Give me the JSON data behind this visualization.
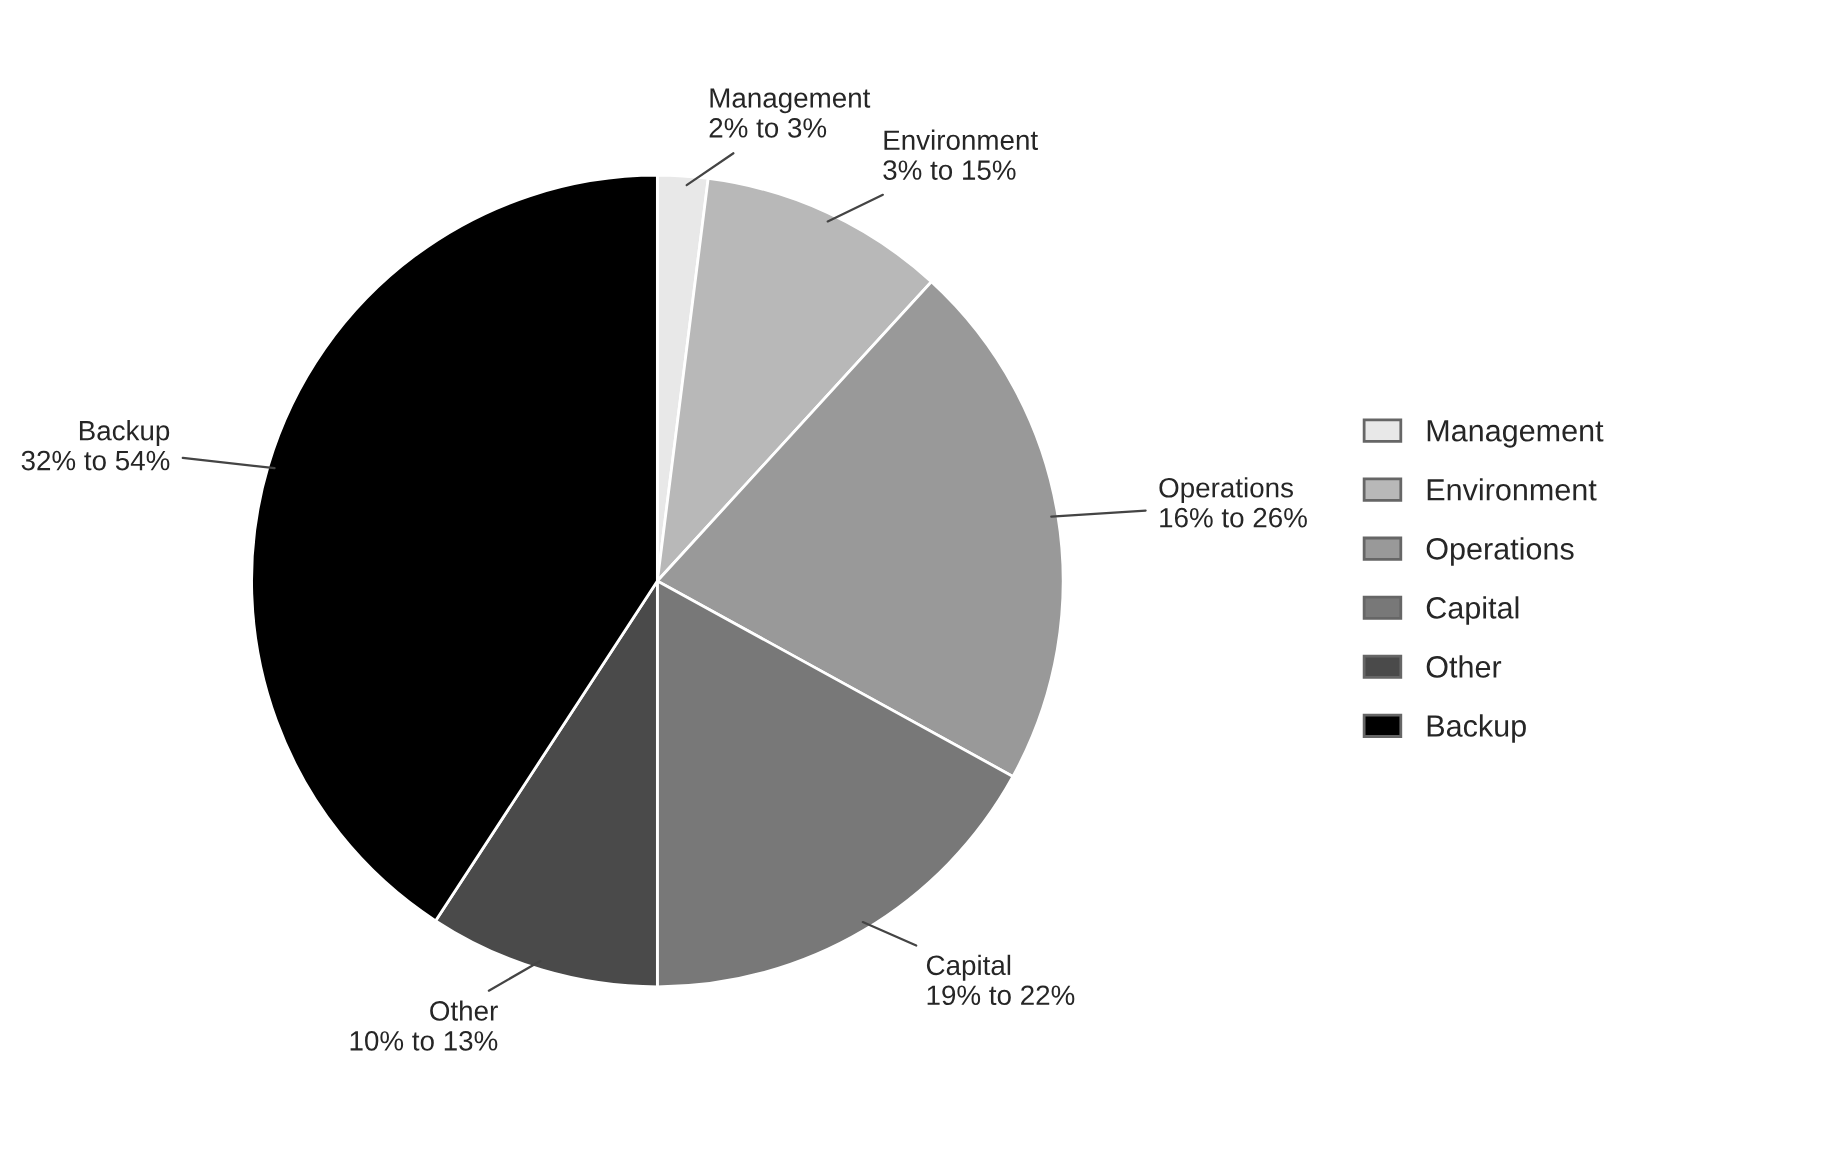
{
  "chart_data": {
    "type": "pie",
    "categories": [
      "Management",
      "Environment",
      "Operations",
      "Capital",
      "Other",
      "Backup"
    ],
    "values": [
      2,
      9.8,
      21.2,
      17,
      9.2,
      40.8
    ],
    "colors": [
      "#e8e8e8",
      "#b8b8b8",
      "#999999",
      "#787878",
      "#4a4a4a",
      "#000000"
    ],
    "annotations": [
      "2% to 3%",
      "3% to 15%",
      "16% to 26%",
      "19% to 22%",
      "10% to 13%",
      "32% to 54%"
    ],
    "legend": "right"
  }
}
